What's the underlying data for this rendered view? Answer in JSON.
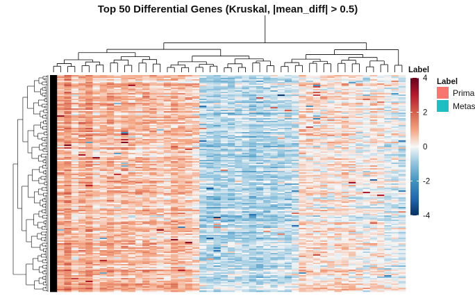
{
  "chart_data": {
    "type": "heatmap",
    "title": "Top 50 Differential Genes (Kruskal, |mean_diff| > 0.5)",
    "color_scale": {
      "title": "Label",
      "min": -4,
      "max": 4,
      "ticks": [
        4,
        2,
        0,
        -2,
        -4
      ],
      "low_color": "#053061",
      "mid_color": "#f7f7f7",
      "high_color": "#67001f"
    },
    "annotation_legend": {
      "title": "Label",
      "entries": [
        {
          "label": "Prima",
          "color": "#f8766d"
        },
        {
          "label": "Metas",
          "color": "#1dbfc4"
        }
      ]
    },
    "row_dendrogram": true,
    "column_dendrogram": true,
    "n_columns": 50,
    "column_mean_values": [
      3.8,
      0.9,
      1.2,
      0.6,
      0.8,
      1.1,
      0.5,
      0.7,
      0.9,
      0.6,
      0.8,
      0.7,
      0.6,
      0.8,
      0.7,
      0.5,
      0.6,
      0.8,
      0.7,
      0.6,
      0.4,
      -0.6,
      -0.7,
      -0.8,
      -0.6,
      -0.7,
      -0.5,
      -0.6,
      -0.8,
      -0.7,
      -0.6,
      -0.7,
      -0.5,
      -0.6,
      -0.4,
      0.4,
      0.3,
      0.2,
      0.3,
      0.2,
      0.3,
      0.4,
      0.2,
      0.1,
      -0.1,
      0.2,
      0.1,
      -0.2,
      -0.1,
      -0.3
    ]
  }
}
